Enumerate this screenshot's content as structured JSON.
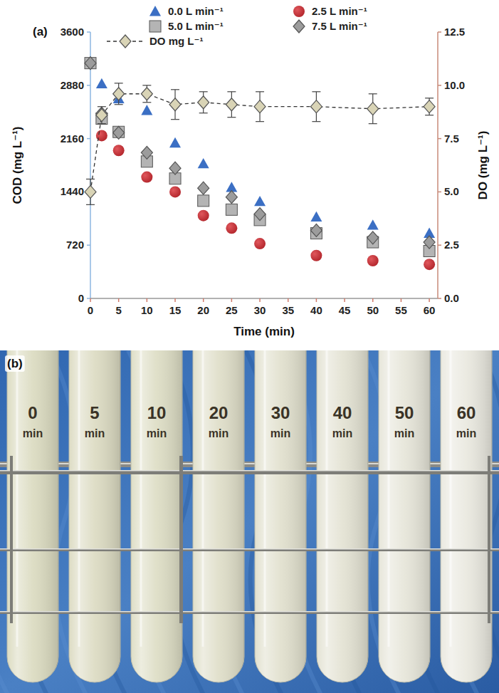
{
  "chart_data": {
    "type": "scatter",
    "panel_label": "(a)",
    "x_label": "Time (min)",
    "y_label": "COD (mg L⁻¹)",
    "y2_label": "DO (mg L⁻¹)",
    "x": [
      0,
      2,
      5,
      10,
      15,
      20,
      25,
      30,
      40,
      50,
      60
    ],
    "xlim": [
      0,
      61.5
    ],
    "xticks": [
      0,
      5,
      10,
      15,
      20,
      25,
      30,
      35,
      40,
      45,
      50,
      55,
      60
    ],
    "ylim": [
      0,
      3600
    ],
    "yticks": [
      0,
      720,
      1440,
      2160,
      2880,
      3600
    ],
    "y2lim": [
      0,
      12.5
    ],
    "y2ticks": [
      {
        "value": 0,
        "label": "0.0"
      },
      2.5,
      {
        "value": 5,
        "label": "5.0"
      },
      7.5,
      {
        "value": 10,
        "label": "10.0"
      },
      12.5
    ],
    "grid": false,
    "legend": "top",
    "series": [
      {
        "name": "0.0 L min⁻¹",
        "type": "scatter",
        "marker": "triangle",
        "color": "#3b6fc4",
        "values": [
          3180,
          2900,
          2700,
          2540,
          2100,
          1820,
          1500,
          1310,
          1100,
          990,
          880
        ]
      },
      {
        "name": "2.5 L min⁻¹",
        "type": "scatter",
        "marker": "circle",
        "color": "#b3262c",
        "values": [
          3180,
          2200,
          2000,
          1640,
          1440,
          1120,
          950,
          740,
          580,
          510,
          460
        ]
      },
      {
        "name": "5.0 L min⁻¹",
        "type": "scatter",
        "marker": "square",
        "color": "#b4b4b4",
        "values": [
          3180,
          2430,
          2250,
          1850,
          1620,
          1320,
          1200,
          1060,
          880,
          760,
          640
        ]
      },
      {
        "name": "7.5 L min⁻¹",
        "type": "scatter",
        "marker": "diamond",
        "color": "#9c9c9c",
        "values": [
          3180,
          2500,
          2240,
          1970,
          1760,
          1490,
          1370,
          1140,
          920,
          820,
          760
        ]
      },
      {
        "name": "DO mg L⁻¹",
        "type": "line",
        "axis": "y2",
        "marker": "diamond",
        "line_style": "dashed",
        "color": "#d9d4b6",
        "values": [
          5.0,
          8.6,
          9.6,
          9.6,
          9.1,
          9.2,
          9.1,
          9.0,
          9.0,
          8.9,
          9.0
        ],
        "errors": [
          0.6,
          0.4,
          0.5,
          0.4,
          0.7,
          0.5,
          0.6,
          0.7,
          0.7,
          0.7,
          0.4
        ]
      }
    ]
  },
  "photo": {
    "panel_label": "(b)",
    "tubes": [
      {
        "time": "0",
        "unit": "min",
        "color": "#dcdcc2"
      },
      {
        "time": "5",
        "unit": "min",
        "color": "#dddcc4"
      },
      {
        "time": "10",
        "unit": "min",
        "color": "#dedec6"
      },
      {
        "time": "20",
        "unit": "min",
        "color": "#e0dfca"
      },
      {
        "time": "30",
        "unit": "min",
        "color": "#e2e1cf"
      },
      {
        "time": "40",
        "unit": "min",
        "color": "#e4e3d4"
      },
      {
        "time": "50",
        "unit": "min",
        "color": "#e7e6da"
      },
      {
        "time": "60",
        "unit": "min",
        "color": "#eae9e0"
      }
    ]
  }
}
